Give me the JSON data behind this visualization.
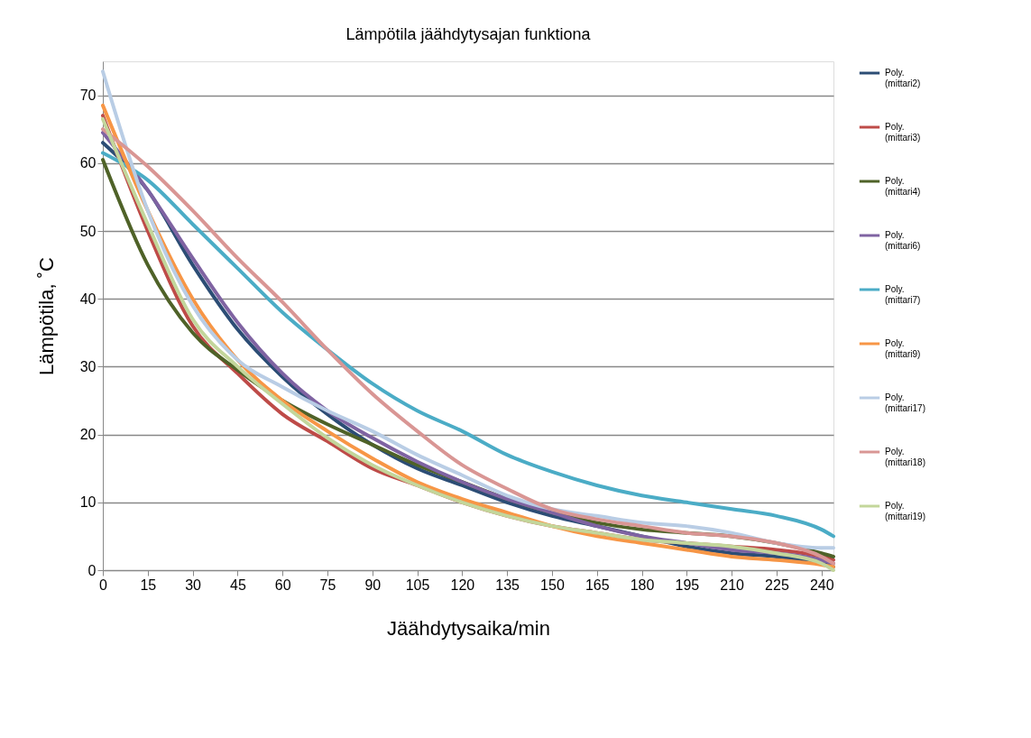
{
  "chart_data": {
    "type": "line",
    "title": "Lämpötila jäähdytysajan funktiona",
    "xlabel": "Jäähdytysaika/min",
    "ylabel": "Lämpötila, ˚C",
    "x": [
      0,
      15,
      30,
      45,
      60,
      75,
      90,
      105,
      120,
      135,
      150,
      165,
      180,
      195,
      210,
      225,
      240,
      244
    ],
    "series": [
      {
        "name": "Poly. (mittari2)",
        "color": "#2c4d75",
        "values": [
          63,
          56,
          45,
          35.5,
          28.5,
          23,
          18.5,
          15,
          12.5,
          10,
          8,
          6.5,
          5,
          3.5,
          2.5,
          2,
          1,
          0.5
        ]
      },
      {
        "name": "Poly. (mittari3)",
        "color": "#be4b48",
        "values": [
          67,
          50,
          36,
          29,
          23,
          19,
          15,
          12.5,
          10,
          8,
          6.5,
          5.5,
          4.5,
          4,
          3.5,
          3,
          2,
          1.5
        ]
      },
      {
        "name": "Poly. (mittari4)",
        "color": "#4f6228",
        "values": [
          60.5,
          45,
          35,
          29.5,
          25,
          21.5,
          18.5,
          15.5,
          13,
          10.5,
          8.5,
          7,
          6,
          5.5,
          5,
          4,
          2.5,
          2
        ]
      },
      {
        "name": "Poly. (mittari6)",
        "color": "#7f63a2",
        "values": [
          64.5,
          56,
          46,
          36.5,
          29,
          23.5,
          19.5,
          16,
          13,
          10.5,
          8.5,
          6.5,
          5,
          4,
          3,
          2.5,
          1.5,
          1
        ]
      },
      {
        "name": "Poly. (mittari7)",
        "color": "#4bacc6",
        "values": [
          61.5,
          57.5,
          51,
          44.5,
          38,
          32.5,
          27.5,
          23.5,
          20.5,
          17,
          14.5,
          12.5,
          11,
          10,
          9,
          8,
          6,
          5
        ]
      },
      {
        "name": "Poly. (mittari9)",
        "color": "#f79646",
        "values": [
          68.5,
          53,
          40,
          31,
          25,
          20.5,
          16.5,
          13,
          10.5,
          8.5,
          6.5,
          5,
          4,
          3,
          2,
          1.5,
          0.8,
          0.5
        ]
      },
      {
        "name": "Poly. (mittari17)",
        "color": "#b9cde5",
        "values": [
          73.5,
          53,
          39,
          31,
          27,
          23.5,
          20.5,
          17,
          14,
          11,
          9,
          8,
          7,
          6.5,
          5.5,
          4,
          3.3,
          3.3
        ]
      },
      {
        "name": "Poly. (mittari18)",
        "color": "#d99694",
        "values": [
          65,
          59.5,
          53,
          46,
          39.5,
          32.5,
          26,
          20.5,
          15.5,
          12,
          9,
          7.5,
          6.5,
          5.5,
          5,
          4,
          2,
          1
        ]
      },
      {
        "name": "Poly. (mittari19)",
        "color": "#c3d69b",
        "values": [
          66.5,
          51,
          37,
          30,
          24.5,
          19.5,
          15.5,
          12.5,
          10,
          8,
          6.5,
          5.5,
          4.5,
          4,
          3.5,
          2.5,
          1,
          0
        ]
      }
    ],
    "xlim": [
      0,
      244
    ],
    "xticks": [
      0,
      15,
      30,
      45,
      60,
      75,
      90,
      105,
      120,
      135,
      150,
      165,
      180,
      195,
      210,
      225,
      240
    ],
    "ylim": [
      0,
      75
    ],
    "yticks": [
      0,
      10,
      20,
      30,
      40,
      50,
      60,
      70
    ],
    "grid": "y",
    "legend": "right",
    "line_style": "solid",
    "marker": "none"
  }
}
